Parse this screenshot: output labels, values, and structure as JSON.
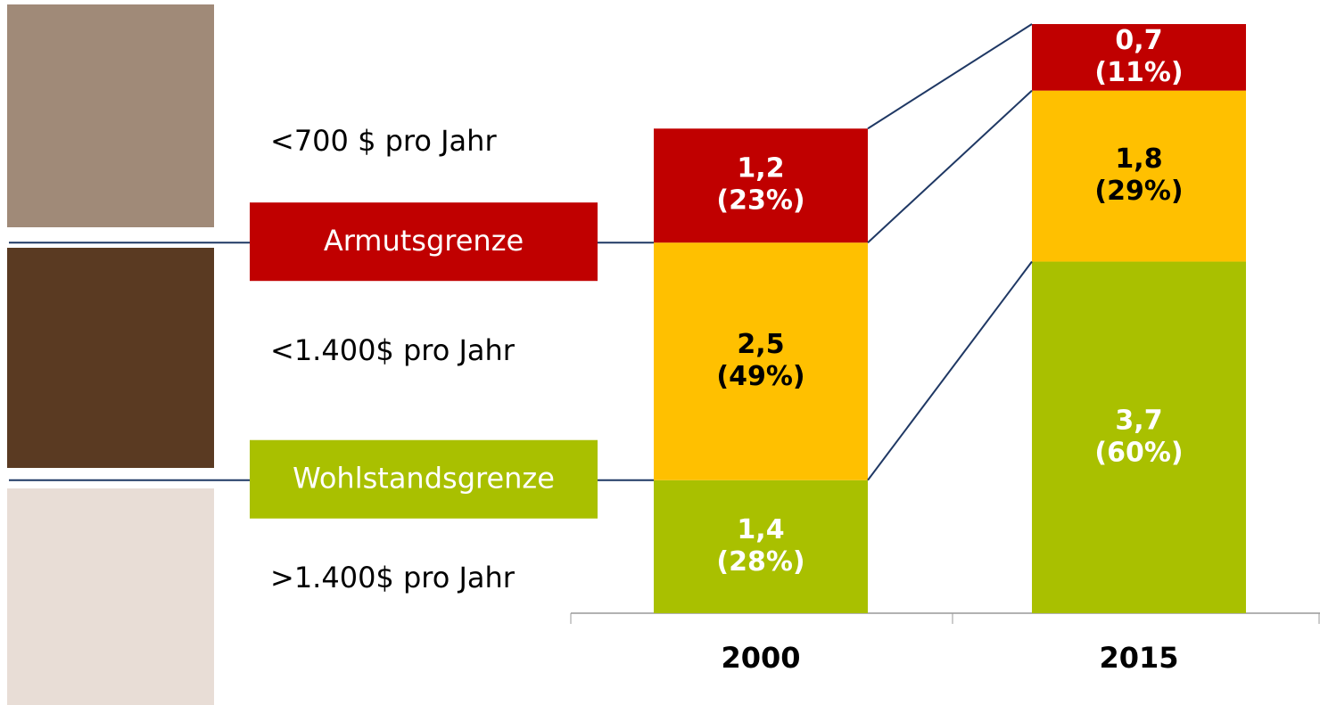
{
  "chart_data": {
    "type": "stacked-bar",
    "categories": [
      "2000",
      "2015"
    ],
    "series": [
      {
        "name": ">1.400$ pro Jahr",
        "color": "#a9c000",
        "label_color": "#ffffff",
        "values": [
          1.4,
          3.7
        ],
        "value_labels": [
          "1,4",
          "3,7"
        ],
        "shares": [
          28,
          60
        ],
        "share_labels": [
          "(28%)",
          "(60%)"
        ]
      },
      {
        "name": "<1.400$ pro Jahr",
        "color": "#ffc000",
        "label_color": "#000000",
        "values": [
          2.5,
          1.8
        ],
        "value_labels": [
          "2,5",
          "1,8"
        ],
        "shares": [
          49,
          29
        ],
        "share_labels": [
          "(49%)",
          "(29%)"
        ]
      },
      {
        "name": "<700 $ pro Jahr",
        "color": "#c00000",
        "label_color": "#ffffff",
        "values": [
          1.2,
          0.7
        ],
        "value_labels": [
          "1,2",
          "0,7"
        ],
        "shares": [
          23,
          11
        ],
        "share_labels": [
          "(23%)",
          "(11%)"
        ]
      }
    ],
    "thresholds": [
      {
        "label": "Wohlstandsgrenze",
        "color": "#a9c000"
      },
      {
        "label": "Armutsgrenze",
        "color": "#c00000"
      }
    ]
  }
}
